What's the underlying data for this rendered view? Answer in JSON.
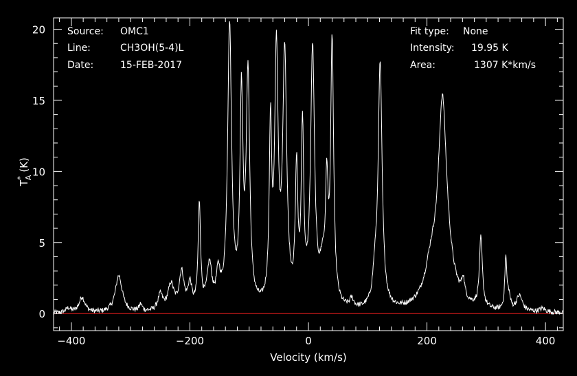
{
  "info": {
    "source_label": "Source:",
    "source_value": "OMC1",
    "line_label": "Line:",
    "line_value": "CH3OH(5-4)L",
    "date_label": "Date:",
    "date_value": "15-FEB-2017",
    "fit_label": "Fit type:",
    "fit_value": "None",
    "intensity_label": "Intensity:",
    "intensity_value": "19.95 K",
    "area_label": "Area:",
    "area_value": "1307 K*km/s"
  },
  "colors": {
    "background": "#000000",
    "axes": "#ffffff",
    "spectrum": "#ffffff",
    "baseline": "#ff2020"
  },
  "chart_data": {
    "type": "line",
    "title": "",
    "xlabel": "Velocity (km/s)",
    "ylabel_main": "T",
    "ylabel_sup": "*",
    "ylabel_sub": "A",
    "ylabel_unit": "(K)",
    "xlim": [
      -430,
      430
    ],
    "ylim": [
      -1.2,
      20.8
    ],
    "x_ticks": [
      -400,
      -200,
      0,
      200,
      400
    ],
    "x_tick_labels": [
      "−400",
      "−200",
      "0",
      "200",
      "400"
    ],
    "y_ticks": [
      0,
      5,
      10,
      15,
      20
    ],
    "y_tick_labels": [
      "0",
      "5",
      "10",
      "15",
      "20"
    ],
    "baseline": 0,
    "grid": false,
    "series": [
      {
        "peaks": [
          {
            "x": -382,
            "height": 1.1,
            "width": 6
          },
          {
            "x": -320,
            "height": 2.6,
            "width": 7
          },
          {
            "x": -283,
            "height": 0.5,
            "width": 3
          },
          {
            "x": -250,
            "height": 1.1,
            "width": 5
          },
          {
            "x": -232,
            "height": 1.8,
            "width": 6
          },
          {
            "x": -214,
            "height": 2.6,
            "width": 5
          },
          {
            "x": -200,
            "height": 1.7,
            "width": 4
          },
          {
            "x": -184,
            "height": 7.3,
            "width": 2.5
          },
          {
            "x": -167,
            "height": 3.0,
            "width": 5
          },
          {
            "x": -152,
            "height": 2.2,
            "width": 4
          },
          {
            "x": -133,
            "height": 19.9,
            "width": 4
          },
          {
            "x": -113,
            "height": 14.4,
            "width": 3
          },
          {
            "x": -102,
            "height": 16.2,
            "width": 3.5
          },
          {
            "x": -64,
            "height": 12.0,
            "width": 2.5
          },
          {
            "x": -54,
            "height": 17.4,
            "width": 3.5
          },
          {
            "x": -40,
            "height": 17.6,
            "width": 4
          },
          {
            "x": -20,
            "height": 9.2,
            "width": 2.5
          },
          {
            "x": -10,
            "height": 12.2,
            "width": 2.5
          },
          {
            "x": 7,
            "height": 18.0,
            "width": 4
          },
          {
            "x": 24,
            "height": 2.5,
            "width": 6
          },
          {
            "x": 31,
            "height": 7.4,
            "width": 2.5
          },
          {
            "x": 40,
            "height": 18.4,
            "width": 3
          },
          {
            "x": 73,
            "height": 0.6,
            "width": 4
          },
          {
            "x": 112,
            "height": 1.8,
            "width": 4
          },
          {
            "x": 121,
            "height": 17.2,
            "width": 4
          },
          {
            "x": 207,
            "height": 2.3,
            "width": 13
          },
          {
            "x": 226,
            "height": 11.0,
            "width": 8
          },
          {
            "x": 229,
            "height": 3.7,
            "width": 16
          },
          {
            "x": 261,
            "height": 1.3,
            "width": 3
          },
          {
            "x": 291,
            "height": 4.9,
            "width": 3
          },
          {
            "x": 333,
            "height": 3.6,
            "width": 2
          },
          {
            "x": 338,
            "height": 1.0,
            "width": 3
          },
          {
            "x": 356,
            "height": 1.1,
            "width": 6
          },
          {
            "x": -405,
            "height": 0.3,
            "width": 5
          },
          {
            "x": 395,
            "height": 0.25,
            "width": 6
          }
        ]
      }
    ]
  }
}
